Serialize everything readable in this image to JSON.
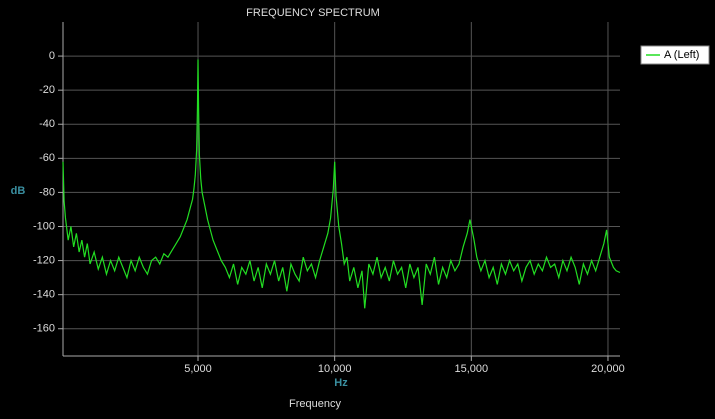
{
  "chart_data": {
    "type": "line",
    "title": "FREQUENCY SPECTRUM",
    "x_label": "Frequency",
    "x_unit": "Hz",
    "y_label": "dB",
    "grid": true,
    "legend": "right",
    "xlim": [
      60,
      20440
    ],
    "ylim": [
      -176,
      20
    ],
    "xticks": [
      {
        "value": 5000,
        "label": "5,000"
      },
      {
        "value": 10000,
        "label": "10,000"
      },
      {
        "value": 15000,
        "label": "15,000"
      },
      {
        "value": 20000,
        "label": "20,000"
      }
    ],
    "yticks": [
      0,
      -20,
      -40,
      -60,
      -80,
      -100,
      -120,
      -140,
      -160
    ],
    "x": [
      60,
      100,
      150,
      250,
      350,
      450,
      550,
      650,
      750,
      850,
      950,
      1050,
      1200,
      1350,
      1500,
      1650,
      1800,
      1950,
      2100,
      2250,
      2400,
      2550,
      2700,
      2850,
      3000,
      3150,
      3300,
      3450,
      3600,
      3750,
      3900,
      4050,
      4200,
      4350,
      4500,
      4600,
      4700,
      4800,
      4850,
      4900,
      4950,
      4980,
      5000,
      5020,
      5050,
      5100,
      5150,
      5250,
      5350,
      5450,
      5550,
      5700,
      5850,
      6000,
      6150,
      6300,
      6450,
      6600,
      6750,
      6900,
      7050,
      7200,
      7350,
      7500,
      7650,
      7800,
      7950,
      8100,
      8250,
      8400,
      8550,
      8700,
      8850,
      9000,
      9150,
      9300,
      9450,
      9600,
      9750,
      9850,
      9950,
      10000,
      10050,
      10150,
      10250,
      10350,
      10450,
      10550,
      10700,
      10850,
      11000,
      11100,
      11250,
      11400,
      11550,
      11700,
      11850,
      12000,
      12150,
      12300,
      12450,
      12600,
      12750,
      12900,
      13050,
      13200,
      13350,
      13500,
      13650,
      13800,
      13950,
      14100,
      14250,
      14400,
      14550,
      14700,
      14850,
      14950,
      15000,
      15100,
      15200,
      15350,
      15500,
      15650,
      15800,
      15950,
      16100,
      16250,
      16400,
      16550,
      16700,
      16850,
      17000,
      17150,
      17300,
      17450,
      17600,
      17750,
      17900,
      18050,
      18200,
      18350,
      18500,
      18650,
      18800,
      18950,
      19100,
      19250,
      19400,
      19550,
      19700,
      19850,
      19950,
      20050,
      20200,
      20300,
      20440
    ],
    "series": [
      {
        "name": "A (Left)",
        "color": "#22dd22",
        "values": [
          -62,
          -85,
          -95,
          -108,
          -100,
          -112,
          -104,
          -115,
          -108,
          -118,
          -110,
          -122,
          -115,
          -125,
          -118,
          -128,
          -120,
          -126,
          -118,
          -124,
          -130,
          -120,
          -126,
          -118,
          -124,
          -128,
          -120,
          -118,
          -122,
          -116,
          -118,
          -114,
          -110,
          -106,
          -100,
          -96,
          -90,
          -84,
          -78,
          -70,
          -55,
          -30,
          -2,
          -30,
          -58,
          -72,
          -80,
          -88,
          -96,
          -102,
          -108,
          -114,
          -120,
          -124,
          -130,
          -122,
          -134,
          -124,
          -128,
          -120,
          -132,
          -124,
          -136,
          -122,
          -128,
          -120,
          -132,
          -124,
          -138,
          -122,
          -128,
          -132,
          -118,
          -126,
          -122,
          -130,
          -120,
          -112,
          -104,
          -95,
          -78,
          -62,
          -82,
          -100,
          -110,
          -122,
          -118,
          -132,
          -124,
          -136,
          -126,
          -148,
          -122,
          -128,
          -118,
          -130,
          -124,
          -132,
          -120,
          -128,
          -124,
          -136,
          -122,
          -130,
          -124,
          -146,
          -122,
          -128,
          -118,
          -134,
          -124,
          -130,
          -120,
          -126,
          -122,
          -112,
          -104,
          -96,
          -100,
          -108,
          -118,
          -126,
          -120,
          -130,
          -124,
          -134,
          -122,
          -128,
          -120,
          -126,
          -122,
          -132,
          -124,
          -120,
          -128,
          -122,
          -126,
          -118,
          -124,
          -122,
          -130,
          -120,
          -126,
          -118,
          -124,
          -134,
          -122,
          -128,
          -120,
          -126,
          -118,
          -110,
          -102,
          -118,
          -124,
          -126,
          -127
        ]
      }
    ]
  }
}
